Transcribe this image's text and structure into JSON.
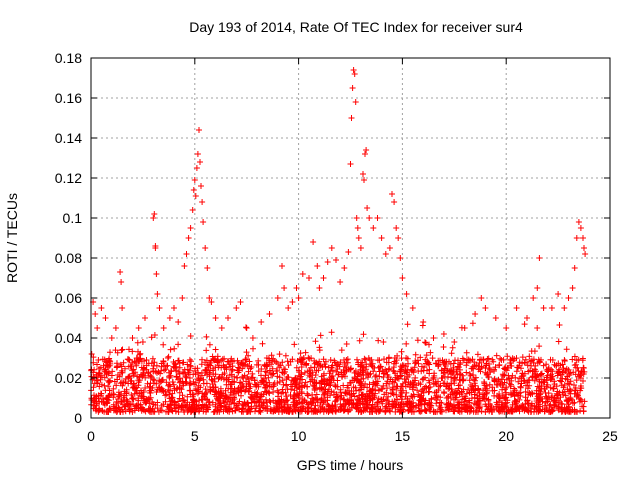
{
  "chart_data": {
    "type": "scatter",
    "title": "Day 193 of 2014, Rate Of TEC Index for receiver sur4",
    "xlabel": "GPS time / hours",
    "ylabel": "ROTI / TECUs",
    "xlim": [
      0,
      25
    ],
    "ylim": [
      0,
      0.18
    ],
    "x_ticks": [
      0,
      5,
      10,
      15,
      20,
      25
    ],
    "y_ticks": [
      0,
      0.02,
      0.04,
      0.06,
      0.08,
      0.1,
      0.12,
      0.14,
      0.16,
      0.18
    ],
    "x_tick_labels": [
      "0",
      "5",
      "10",
      "15",
      "20",
      "25"
    ],
    "y_tick_labels": [
      "0",
      "0.02",
      "0.04",
      "0.06",
      "0.08",
      "0.1",
      "0.12",
      "0.14",
      "0.16",
      "0.18"
    ],
    "grid": true,
    "marker": "+",
    "color": "#ff0000",
    "x_range_of_data": [
      0,
      23.8
    ],
    "bulk_band": [
      0.003,
      0.03
    ],
    "series": [
      {
        "points": [
          [
            0.1,
            0.058
          ],
          [
            0.2,
            0.052
          ],
          [
            0.3,
            0.045
          ],
          [
            0.5,
            0.055
          ],
          [
            0.7,
            0.05
          ],
          [
            1.0,
            0.04
          ],
          [
            1.2,
            0.045
          ],
          [
            1.4,
            0.073
          ],
          [
            1.45,
            0.068
          ],
          [
            1.5,
            0.055
          ],
          [
            2.0,
            0.04
          ],
          [
            2.3,
            0.045
          ],
          [
            2.5,
            0.038
          ],
          [
            2.6,
            0.05
          ],
          [
            3.0,
            0.1
          ],
          [
            3.05,
            0.102
          ],
          [
            3.1,
            0.086
          ],
          [
            3.1,
            0.085
          ],
          [
            3.15,
            0.072
          ],
          [
            3.2,
            0.062
          ],
          [
            3.3,
            0.055
          ],
          [
            3.5,
            0.045
          ],
          [
            3.8,
            0.05
          ],
          [
            4.0,
            0.055
          ],
          [
            4.2,
            0.048
          ],
          [
            4.4,
            0.06
          ],
          [
            4.5,
            0.076
          ],
          [
            4.6,
            0.082
          ],
          [
            4.7,
            0.09
          ],
          [
            4.8,
            0.095
          ],
          [
            4.9,
            0.104
          ],
          [
            4.95,
            0.114
          ],
          [
            5.0,
            0.119
          ],
          [
            5.05,
            0.111
          ],
          [
            5.1,
            0.125
          ],
          [
            5.15,
            0.132
          ],
          [
            5.2,
            0.144
          ],
          [
            5.25,
            0.128
          ],
          [
            5.3,
            0.116
          ],
          [
            5.35,
            0.108
          ],
          [
            5.4,
            0.098
          ],
          [
            5.5,
            0.085
          ],
          [
            5.6,
            0.075
          ],
          [
            5.7,
            0.06
          ],
          [
            5.8,
            0.058
          ],
          [
            6.0,
            0.05
          ],
          [
            6.3,
            0.045
          ],
          [
            6.6,
            0.05
          ],
          [
            7.0,
            0.055
          ],
          [
            7.2,
            0.058
          ],
          [
            7.5,
            0.045
          ],
          [
            7.8,
            0.04
          ],
          [
            8.2,
            0.048
          ],
          [
            8.6,
            0.052
          ],
          [
            9.0,
            0.06
          ],
          [
            9.2,
            0.076
          ],
          [
            9.3,
            0.065
          ],
          [
            9.5,
            0.055
          ],
          [
            9.7,
            0.058
          ],
          [
            9.9,
            0.065
          ],
          [
            10.0,
            0.06
          ],
          [
            10.2,
            0.072
          ],
          [
            10.5,
            0.07
          ],
          [
            10.7,
            0.088
          ],
          [
            10.9,
            0.076
          ],
          [
            11.0,
            0.065
          ],
          [
            11.2,
            0.07
          ],
          [
            11.4,
            0.078
          ],
          [
            11.6,
            0.085
          ],
          [
            11.8,
            0.079
          ],
          [
            12.0,
            0.068
          ],
          [
            12.2,
            0.075
          ],
          [
            12.4,
            0.083
          ],
          [
            12.5,
            0.127
          ],
          [
            12.55,
            0.15
          ],
          [
            12.6,
            0.165
          ],
          [
            12.65,
            0.174
          ],
          [
            12.7,
            0.172
          ],
          [
            12.75,
            0.158
          ],
          [
            12.8,
            0.1
          ],
          [
            12.85,
            0.095
          ],
          [
            12.9,
            0.09
          ],
          [
            13.0,
            0.085
          ],
          [
            13.1,
            0.122
          ],
          [
            13.15,
            0.119
          ],
          [
            13.2,
            0.132
          ],
          [
            13.25,
            0.134
          ],
          [
            13.3,
            0.105
          ],
          [
            13.4,
            0.1
          ],
          [
            13.6,
            0.095
          ],
          [
            13.8,
            0.1
          ],
          [
            14.0,
            0.09
          ],
          [
            14.2,
            0.082
          ],
          [
            14.4,
            0.085
          ],
          [
            14.5,
            0.112
          ],
          [
            14.6,
            0.108
          ],
          [
            14.7,
            0.095
          ],
          [
            14.8,
            0.09
          ],
          [
            14.9,
            0.08
          ],
          [
            15.0,
            0.07
          ],
          [
            15.2,
            0.062
          ],
          [
            15.5,
            0.055
          ],
          [
            16.0,
            0.048
          ],
          [
            16.5,
            0.04
          ],
          [
            17.0,
            0.042
          ],
          [
            17.5,
            0.038
          ],
          [
            18.0,
            0.045
          ],
          [
            18.5,
            0.052
          ],
          [
            18.8,
            0.06
          ],
          [
            19.0,
            0.055
          ],
          [
            19.5,
            0.05
          ],
          [
            20.0,
            0.045
          ],
          [
            20.5,
            0.055
          ],
          [
            21.0,
            0.05
          ],
          [
            21.3,
            0.06
          ],
          [
            21.5,
            0.065
          ],
          [
            21.6,
            0.08
          ],
          [
            21.8,
            0.055
          ],
          [
            22.2,
            0.055
          ],
          [
            22.5,
            0.062
          ],
          [
            22.8,
            0.055
          ],
          [
            23.0,
            0.06
          ],
          [
            23.2,
            0.065
          ],
          [
            23.3,
            0.075
          ],
          [
            23.4,
            0.09
          ],
          [
            23.5,
            0.098
          ],
          [
            23.6,
            0.095
          ],
          [
            23.7,
            0.09
          ],
          [
            23.75,
            0.085
          ],
          [
            23.8,
            0.082
          ]
        ]
      }
    ]
  }
}
